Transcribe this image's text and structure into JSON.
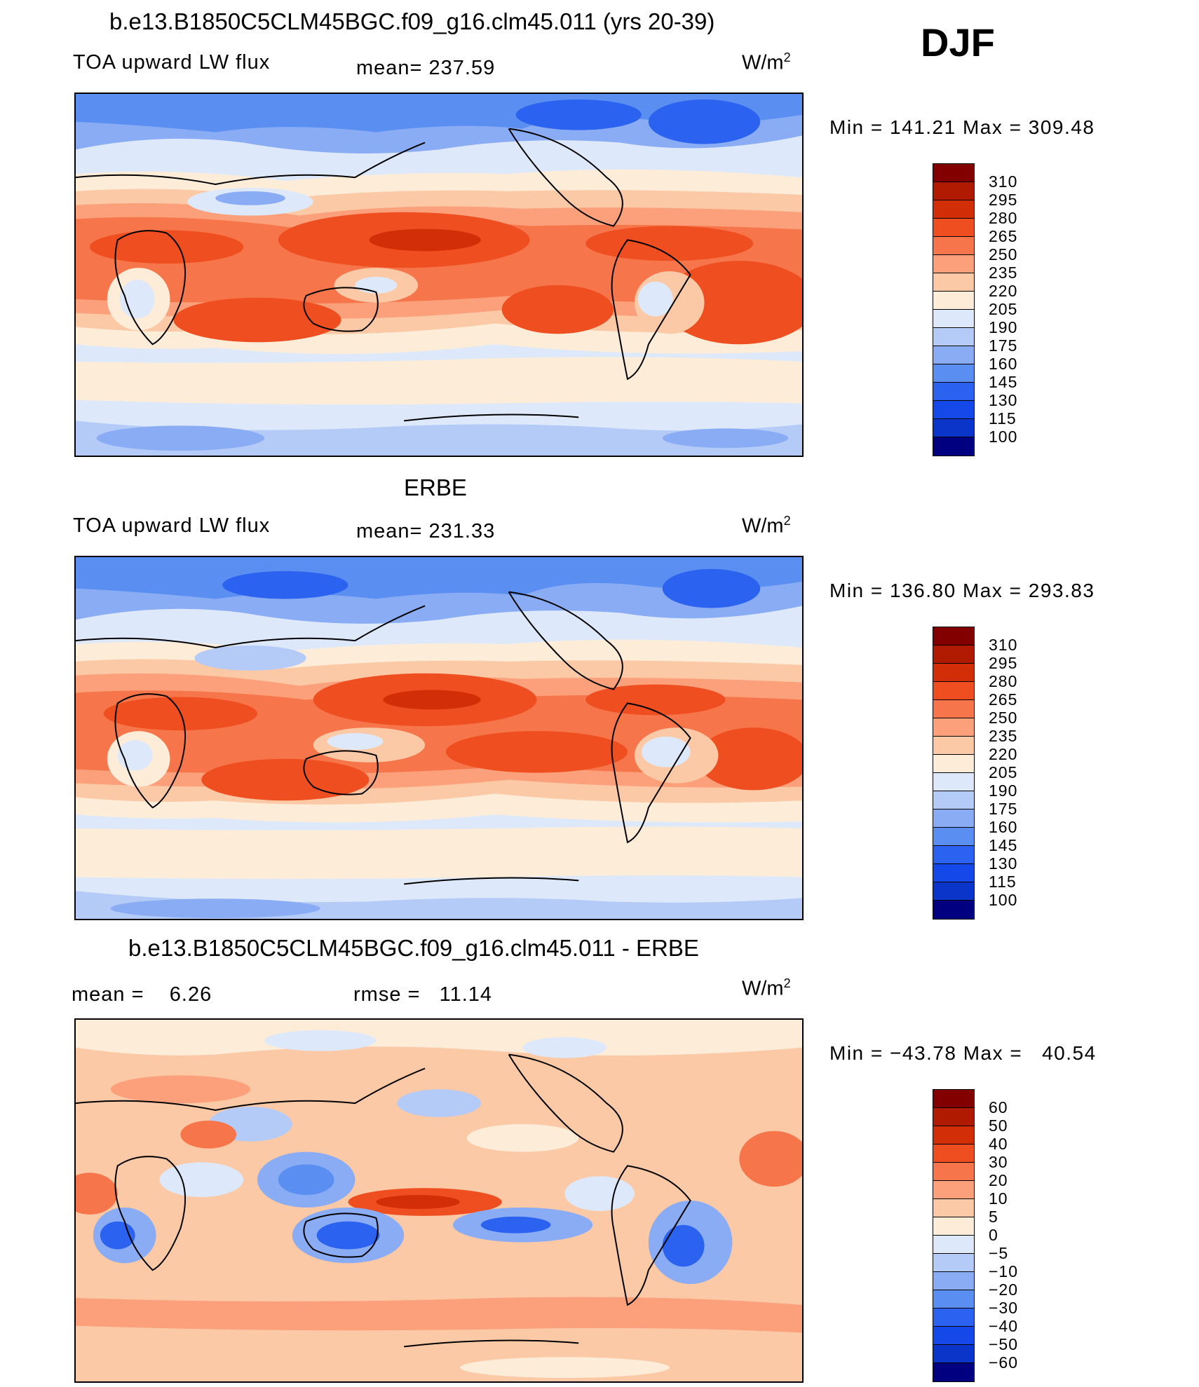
{
  "figure": {
    "season": "DJF",
    "units": {
      "base": "W/m",
      "exp": "2"
    },
    "palette_upper": [
      "#000080",
      "#0020a0",
      "#0a35c8",
      "#1448e8",
      "#2c62f0",
      "#5a8ef0",
      "#89acf4",
      "#b4cbf8",
      "#dde9fb",
      "#fdecd8",
      "#fcc9a6",
      "#fba07a",
      "#f7754a",
      "#ee4e20",
      "#d22e08",
      "#b01a00",
      "#820000"
    ],
    "palette_diff": [
      "#000080",
      "#0020a0",
      "#0a35c8",
      "#1448e8",
      "#2c62f0",
      "#5a8ef0",
      "#89acf4",
      "#b4cbf8",
      "#dde9fb",
      "#fdecd8",
      "#fcc9a6",
      "#fba07a",
      "#f7754a",
      "#ee4e20",
      "#d22e08",
      "#b01a00",
      "#820000"
    ],
    "panels": [
      {
        "title": "b.e13.B1850C5CLM45BGC.f09_g16.clm45.011 (yrs 20-39)",
        "left_label": "TOA upward LW flux",
        "center_label": "mean= 237.59",
        "minmax": "Min = 141.21 Max = 309.48",
        "ticks": [
          "310",
          "295",
          "280",
          "265",
          "250",
          "235",
          "220",
          "205",
          "190",
          "175",
          "160",
          "145",
          "130",
          "115",
          "100"
        ]
      },
      {
        "title": "ERBE",
        "left_label": "TOA upward LW flux",
        "center_label": "mean= 231.33",
        "minmax": "Min = 136.80 Max = 293.83",
        "ticks": [
          "310",
          "295",
          "280",
          "265",
          "250",
          "235",
          "220",
          "205",
          "190",
          "175",
          "160",
          "145",
          "130",
          "115",
          "100"
        ]
      },
      {
        "title": "b.e13.B1850C5CLM45BGC.f09_g16.clm45.011 - ERBE",
        "left_label": "mean =    6.26",
        "center_label": "rmse =   11.14",
        "minmax": "Min = −43.78 Max =   40.54",
        "ticks": [
          "60",
          "50",
          "40",
          "30",
          "20",
          "10",
          "5",
          "0",
          "−5",
          "−10",
          "−20",
          "−30",
          "−40",
          "−50",
          "−60"
        ]
      }
    ]
  }
}
